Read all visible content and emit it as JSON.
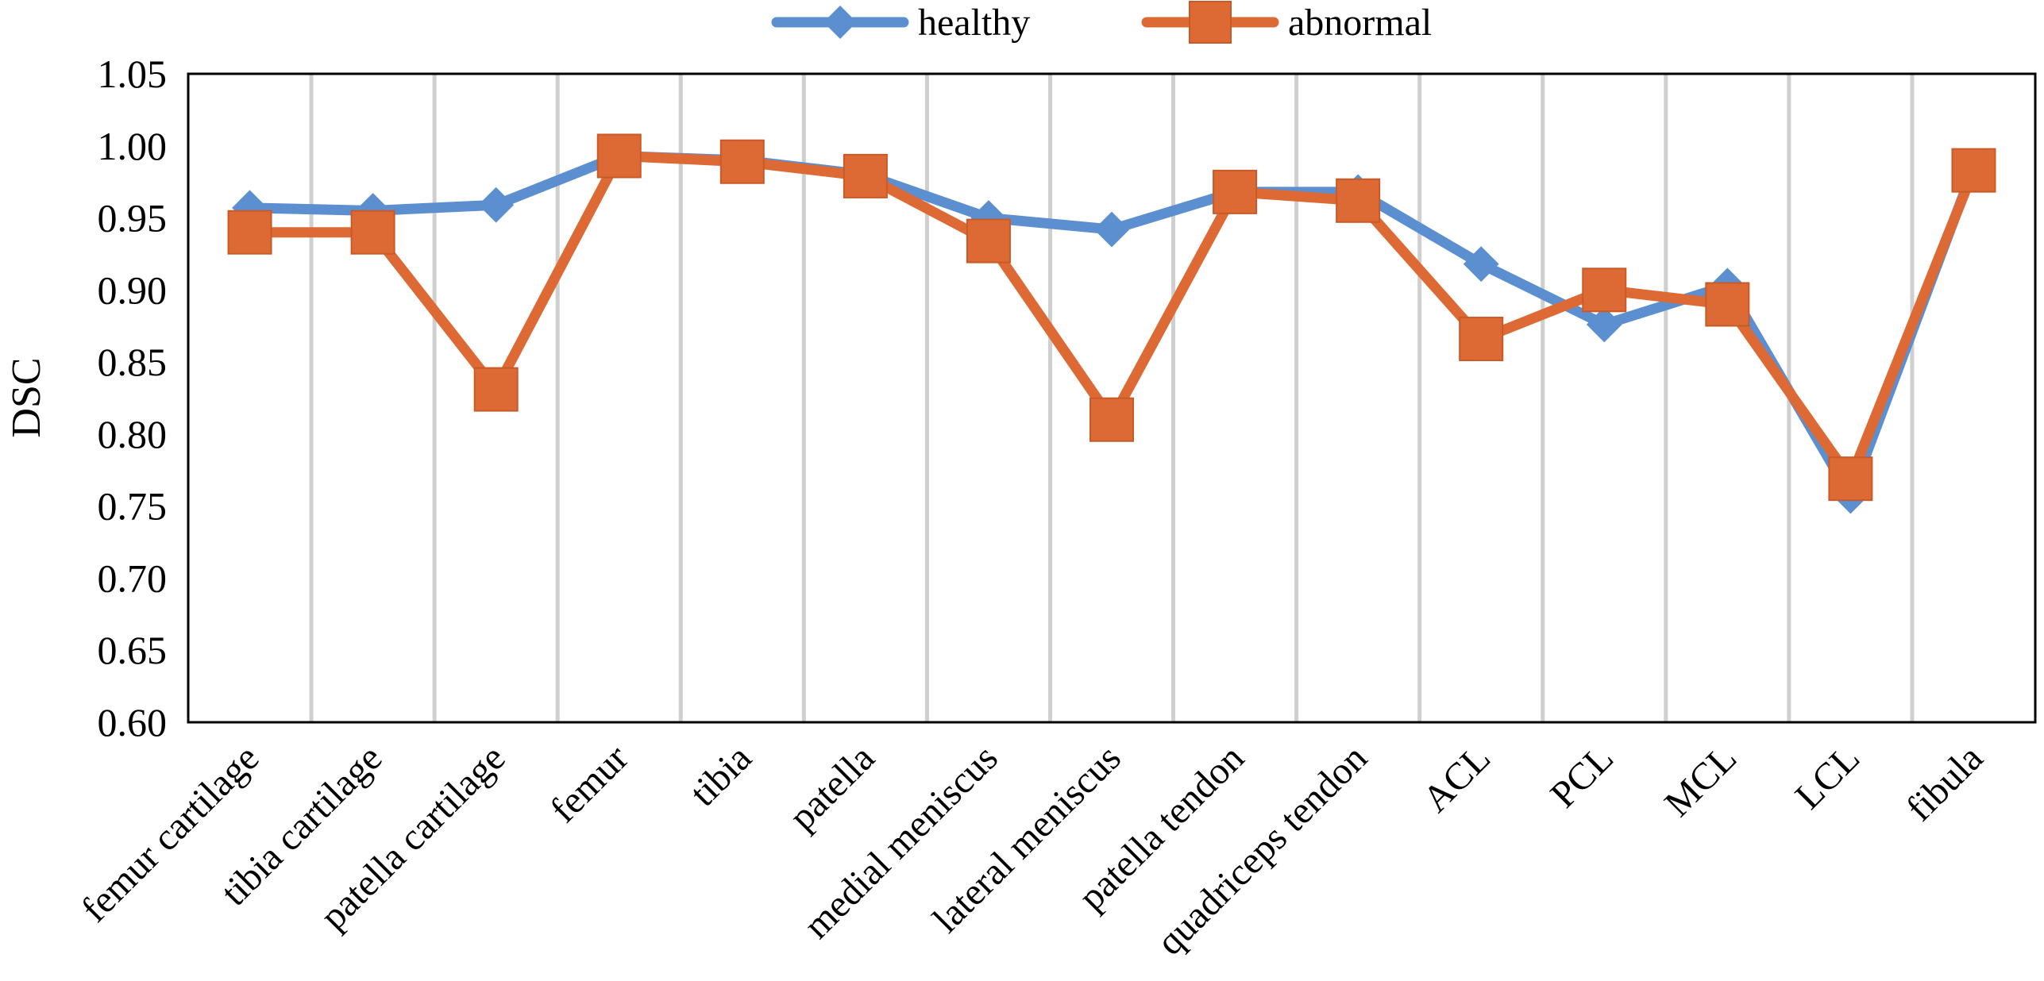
{
  "chart_data": {
    "type": "line",
    "title": "",
    "xlabel": "",
    "ylabel": "DSC",
    "ylim": [
      0.6,
      1.05
    ],
    "yticks": [
      "0.60",
      "0.65",
      "0.70",
      "0.75",
      "0.80",
      "0.85",
      "0.90",
      "0.95",
      "1.00",
      "1.05"
    ],
    "grid": "vertical-between-categories",
    "legend": "top-center",
    "categories": [
      "femur cartilage",
      "tibia cartilage",
      "patella cartilage",
      "femur",
      "tibia",
      "patella",
      "medial meniscus",
      "lateral meniscus",
      "patella tendon",
      "quadriceps tendon",
      "ACL",
      "PCL",
      "MCL",
      "LCL",
      "fibula"
    ],
    "series": [
      {
        "name": "healthy",
        "color": "#5b8fd0",
        "marker": "diamond",
        "values": [
          0.957,
          0.955,
          0.959,
          0.993,
          0.99,
          0.98,
          0.95,
          0.942,
          0.968,
          0.968,
          0.918,
          0.876,
          0.903,
          0.757,
          0.985
        ]
      },
      {
        "name": "abnormal",
        "color": "#dd6a34",
        "marker": "square",
        "values": [
          0.94,
          0.94,
          0.831,
          0.993,
          0.989,
          0.979,
          0.934,
          0.81,
          0.968,
          0.962,
          0.866,
          0.9,
          0.89,
          0.769,
          0.983
        ]
      }
    ]
  }
}
